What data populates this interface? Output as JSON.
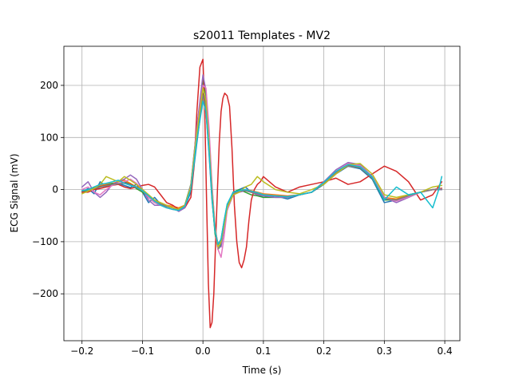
{
  "chart_data": {
    "type": "line",
    "title": "s20011 Templates - MV2",
    "xlabel": "Time (s)",
    "ylabel": "ECG Signal (mV)",
    "xlim": [
      -0.23,
      0.425
    ],
    "ylim": [
      -290,
      275
    ],
    "grid": true,
    "xticks": [
      -0.2,
      -0.1,
      0.0,
      0.1,
      0.2,
      0.3,
      0.4
    ],
    "xtick_labels": [
      "−0.2",
      "−0.1",
      "0.0",
      "0.1",
      "0.2",
      "0.3",
      "0.4"
    ],
    "yticks": [
      -200,
      -100,
      0,
      100,
      200
    ],
    "ytick_labels": [
      "−200",
      "−100",
      "0",
      "100",
      "200"
    ],
    "series": [
      {
        "color": "#1f77b4",
        "x": [
          -0.2,
          -0.19,
          -0.18,
          -0.17,
          -0.16,
          -0.15,
          -0.14,
          -0.13,
          -0.12,
          -0.11,
          -0.1,
          -0.09,
          -0.08,
          -0.07,
          -0.06,
          -0.05,
          -0.04,
          -0.03,
          -0.02,
          -0.01,
          0.0,
          0.005,
          0.01,
          0.015,
          0.02,
          0.025,
          0.03,
          0.035,
          0.04,
          0.05,
          0.06,
          0.07,
          0.08,
          0.09,
          0.1,
          0.12,
          0.14,
          0.16,
          0.18,
          0.2,
          0.22,
          0.24,
          0.26,
          0.28,
          0.3,
          0.32,
          0.34,
          0.36,
          0.38,
          0.395
        ],
        "y": [
          -5,
          2,
          -8,
          15,
          6,
          10,
          12,
          8,
          4,
          10,
          -5,
          -25,
          -15,
          -28,
          -32,
          -35,
          -40,
          -33,
          -5,
          90,
          180,
          150,
          70,
          -20,
          -80,
          -110,
          -95,
          -60,
          -30,
          -5,
          0,
          5,
          -5,
          -10,
          -15,
          -12,
          -18,
          -10,
          -5,
          10,
          30,
          45,
          40,
          20,
          -25,
          -20,
          -10,
          -5,
          0,
          2
        ]
      },
      {
        "color": "#ff7f0e",
        "x": [
          -0.2,
          -0.19,
          -0.18,
          -0.17,
          -0.16,
          -0.15,
          -0.14,
          -0.13,
          -0.12,
          -0.11,
          -0.1,
          -0.09,
          -0.08,
          -0.07,
          -0.06,
          -0.05,
          -0.04,
          -0.03,
          -0.02,
          -0.01,
          0.0,
          0.005,
          0.01,
          0.015,
          0.02,
          0.025,
          0.03,
          0.035,
          0.04,
          0.05,
          0.06,
          0.07,
          0.08,
          0.09,
          0.1,
          0.12,
          0.14,
          0.16,
          0.18,
          0.2,
          0.22,
          0.24,
          0.26,
          0.28,
          0.3,
          0.32,
          0.34,
          0.36,
          0.38,
          0.395
        ],
        "y": [
          -3,
          0,
          5,
          8,
          10,
          12,
          15,
          18,
          12,
          5,
          0,
          -10,
          -20,
          -28,
          -30,
          -32,
          -35,
          -30,
          0,
          100,
          175,
          160,
          80,
          -10,
          -75,
          -105,
          -100,
          -70,
          -35,
          -10,
          -5,
          0,
          -2,
          -5,
          -8,
          -10,
          -12,
          -10,
          -5,
          15,
          35,
          48,
          45,
          25,
          -15,
          -18,
          -10,
          -5,
          0,
          3
        ]
      },
      {
        "color": "#2ca02c",
        "x": [
          -0.2,
          -0.19,
          -0.18,
          -0.17,
          -0.16,
          -0.15,
          -0.14,
          -0.13,
          -0.12,
          -0.11,
          -0.1,
          -0.09,
          -0.08,
          -0.07,
          -0.06,
          -0.05,
          -0.04,
          -0.03,
          -0.02,
          -0.01,
          0.0,
          0.005,
          0.01,
          0.015,
          0.02,
          0.025,
          0.03,
          0.035,
          0.04,
          0.05,
          0.06,
          0.07,
          0.08,
          0.09,
          0.1,
          0.12,
          0.14,
          0.16,
          0.18,
          0.2,
          0.22,
          0.24,
          0.26,
          0.28,
          0.3,
          0.32,
          0.34,
          0.36,
          0.38,
          0.395
        ],
        "y": [
          -5,
          -2,
          0,
          5,
          8,
          12,
          10,
          15,
          10,
          2,
          -5,
          -15,
          -25,
          -30,
          -35,
          -38,
          -40,
          -30,
          10,
          120,
          210,
          180,
          90,
          -15,
          -85,
          -115,
          -105,
          -65,
          -30,
          -5,
          0,
          -5,
          -10,
          -12,
          -15,
          -15,
          -15,
          -10,
          -5,
          12,
          32,
          45,
          42,
          22,
          -20,
          -20,
          -12,
          -5,
          0,
          0
        ]
      },
      {
        "color": "#d62728",
        "x": [
          -0.2,
          -0.19,
          -0.18,
          -0.17,
          -0.16,
          -0.15,
          -0.14,
          -0.13,
          -0.12,
          -0.11,
          -0.1,
          -0.09,
          -0.08,
          -0.07,
          -0.06,
          -0.05,
          -0.04,
          -0.03,
          -0.02,
          -0.015,
          -0.01,
          -0.005,
          0.0,
          0.003,
          0.006,
          0.009,
          0.012,
          0.015,
          0.018,
          0.021,
          0.024,
          0.027,
          0.03,
          0.033,
          0.036,
          0.04,
          0.044,
          0.048,
          0.052,
          0.056,
          0.06,
          0.064,
          0.068,
          0.072,
          0.076,
          0.08,
          0.085,
          0.09,
          0.095,
          0.1,
          0.11,
          0.12,
          0.13,
          0.14,
          0.15,
          0.16,
          0.18,
          0.2,
          0.22,
          0.24,
          0.26,
          0.28,
          0.3,
          0.32,
          0.34,
          0.36,
          0.38,
          0.395
        ],
        "y": [
          -5,
          -5,
          0,
          2,
          5,
          8,
          10,
          5,
          2,
          5,
          8,
          10,
          5,
          -10,
          -25,
          -30,
          -38,
          -35,
          -15,
          40,
          150,
          235,
          250,
          150,
          -20,
          -180,
          -265,
          -255,
          -200,
          -100,
          0,
          90,
          150,
          175,
          185,
          180,
          160,
          80,
          -30,
          -100,
          -140,
          -150,
          -135,
          -110,
          -60,
          -20,
          0,
          10,
          15,
          25,
          15,
          5,
          0,
          -5,
          0,
          5,
          10,
          15,
          22,
          10,
          15,
          30,
          45,
          35,
          15,
          -20,
          -10,
          15
        ]
      },
      {
        "color": "#9467bd",
        "x": [
          -0.2,
          -0.19,
          -0.18,
          -0.17,
          -0.16,
          -0.15,
          -0.14,
          -0.13,
          -0.12,
          -0.11,
          -0.1,
          -0.09,
          -0.08,
          -0.07,
          -0.06,
          -0.05,
          -0.04,
          -0.03,
          -0.02,
          -0.01,
          0.0,
          0.005,
          0.01,
          0.015,
          0.02,
          0.025,
          0.03,
          0.035,
          0.04,
          0.05,
          0.06,
          0.07,
          0.08,
          0.09,
          0.1,
          0.12,
          0.14,
          0.16,
          0.18,
          0.2,
          0.22,
          0.24,
          0.26,
          0.28,
          0.3,
          0.32,
          0.34,
          0.36,
          0.38,
          0.395
        ],
        "y": [
          5,
          15,
          -5,
          -15,
          -5,
          10,
          15,
          20,
          28,
          20,
          0,
          -20,
          -30,
          -30,
          -32,
          -35,
          -42,
          -35,
          5,
          120,
          220,
          190,
          110,
          5,
          -70,
          -110,
          -110,
          -75,
          -40,
          -10,
          -5,
          -2,
          -5,
          -10,
          -12,
          -15,
          -15,
          -10,
          -5,
          15,
          38,
          52,
          48,
          25,
          -15,
          -25,
          -15,
          -5,
          0,
          0
        ]
      },
      {
        "color": "#8c564b",
        "x": [
          -0.2,
          -0.19,
          -0.18,
          -0.17,
          -0.16,
          -0.15,
          -0.14,
          -0.13,
          -0.12,
          -0.11,
          -0.1,
          -0.09,
          -0.08,
          -0.07,
          -0.06,
          -0.05,
          -0.04,
          -0.03,
          -0.02,
          -0.01,
          0.0,
          0.005,
          0.01,
          0.015,
          0.02,
          0.025,
          0.03,
          0.035,
          0.04,
          0.05,
          0.06,
          0.07,
          0.08,
          0.09,
          0.1,
          0.12,
          0.14,
          0.16,
          0.18,
          0.2,
          0.22,
          0.24,
          0.26,
          0.28,
          0.3,
          0.32,
          0.34,
          0.36,
          0.38,
          0.395
        ],
        "y": [
          -2,
          0,
          3,
          6,
          8,
          10,
          12,
          14,
          10,
          5,
          -2,
          -12,
          -22,
          -28,
          -32,
          -35,
          -38,
          -30,
          5,
          105,
          185,
          165,
          85,
          -10,
          -80,
          -108,
          -98,
          -65,
          -32,
          -8,
          -3,
          -2,
          -5,
          -8,
          -10,
          -12,
          -14,
          -10,
          -5,
          12,
          33,
          46,
          43,
          23,
          -18,
          -20,
          -12,
          -5,
          0,
          2
        ]
      },
      {
        "color": "#e377c2",
        "x": [
          -0.2,
          -0.19,
          -0.18,
          -0.17,
          -0.16,
          -0.15,
          -0.14,
          -0.13,
          -0.12,
          -0.11,
          -0.1,
          -0.09,
          -0.08,
          -0.07,
          -0.06,
          -0.05,
          -0.04,
          -0.03,
          -0.02,
          -0.01,
          0.0,
          0.005,
          0.01,
          0.015,
          0.02,
          0.025,
          0.03,
          0.035,
          0.04,
          0.05,
          0.06,
          0.07,
          0.08,
          0.09,
          0.1,
          0.12,
          0.14,
          0.16,
          0.18,
          0.2,
          0.22,
          0.24,
          0.26,
          0.28,
          0.3,
          0.32,
          0.34,
          0.36,
          0.38,
          0.395
        ],
        "y": [
          0,
          5,
          -5,
          -10,
          0,
          8,
          12,
          15,
          20,
          12,
          0,
          -15,
          -25,
          -30,
          -35,
          -38,
          -40,
          -32,
          8,
          115,
          200,
          195,
          120,
          10,
          -75,
          -115,
          -130,
          -90,
          -40,
          -8,
          -2,
          0,
          -3,
          -8,
          -10,
          -12,
          -14,
          -10,
          -5,
          14,
          35,
          50,
          46,
          24,
          -16,
          -22,
          -14,
          -5,
          0,
          2
        ]
      },
      {
        "color": "#7f7f7f",
        "x": [
          -0.2,
          -0.19,
          -0.18,
          -0.17,
          -0.16,
          -0.15,
          -0.14,
          -0.13,
          -0.12,
          -0.11,
          -0.1,
          -0.09,
          -0.08,
          -0.07,
          -0.06,
          -0.05,
          -0.04,
          -0.03,
          -0.02,
          -0.01,
          0.0,
          0.005,
          0.01,
          0.015,
          0.02,
          0.025,
          0.03,
          0.035,
          0.04,
          0.05,
          0.06,
          0.07,
          0.08,
          0.09,
          0.1,
          0.12,
          0.14,
          0.16,
          0.18,
          0.2,
          0.22,
          0.24,
          0.26,
          0.28,
          0.3,
          0.32,
          0.34,
          0.36,
          0.38,
          0.395
        ],
        "y": [
          -3,
          -1,
          2,
          5,
          7,
          10,
          11,
          12,
          9,
          4,
          -3,
          -12,
          -22,
          -28,
          -32,
          -35,
          -38,
          -30,
          3,
          100,
          180,
          160,
          80,
          -12,
          -80,
          -105,
          -97,
          -64,
          -32,
          -8,
          -3,
          -2,
          -5,
          -8,
          -10,
          -12,
          -13,
          -10,
          -5,
          12,
          32,
          45,
          42,
          22,
          -18,
          -20,
          -12,
          -5,
          0,
          1
        ]
      },
      {
        "color": "#bcbd22",
        "x": [
          -0.2,
          -0.19,
          -0.18,
          -0.17,
          -0.16,
          -0.15,
          -0.14,
          -0.13,
          -0.12,
          -0.11,
          -0.1,
          -0.09,
          -0.08,
          -0.07,
          -0.06,
          -0.05,
          -0.04,
          -0.03,
          -0.02,
          -0.01,
          0.0,
          0.005,
          0.01,
          0.015,
          0.02,
          0.025,
          0.03,
          0.035,
          0.04,
          0.05,
          0.06,
          0.07,
          0.08,
          0.09,
          0.1,
          0.12,
          0.14,
          0.16,
          0.18,
          0.2,
          0.22,
          0.24,
          0.26,
          0.28,
          0.3,
          0.32,
          0.34,
          0.36,
          0.38,
          0.395
        ],
        "y": [
          -8,
          -3,
          2,
          10,
          25,
          20,
          15,
          25,
          18,
          10,
          0,
          -10,
          -20,
          -25,
          -30,
          -35,
          -38,
          -30,
          5,
          110,
          195,
          170,
          90,
          -5,
          -75,
          -110,
          -100,
          -70,
          -35,
          -10,
          -5,
          5,
          10,
          25,
          15,
          0,
          -5,
          -8,
          0,
          10,
          30,
          48,
          50,
          30,
          -10,
          -15,
          -10,
          -5,
          5,
          8
        ]
      },
      {
        "color": "#17becf",
        "x": [
          -0.2,
          -0.19,
          -0.18,
          -0.17,
          -0.16,
          -0.15,
          -0.14,
          -0.13,
          -0.12,
          -0.11,
          -0.1,
          -0.09,
          -0.08,
          -0.07,
          -0.06,
          -0.05,
          -0.04,
          -0.03,
          -0.02,
          -0.01,
          0.0,
          0.005,
          0.01,
          0.015,
          0.02,
          0.025,
          0.03,
          0.035,
          0.04,
          0.05,
          0.06,
          0.07,
          0.08,
          0.09,
          0.1,
          0.12,
          0.14,
          0.16,
          0.18,
          0.2,
          0.22,
          0.24,
          0.26,
          0.28,
          0.3,
          0.32,
          0.34,
          0.36,
          0.38,
          0.39,
          0.395
        ],
        "y": [
          -2,
          0,
          5,
          10,
          12,
          15,
          18,
          12,
          8,
          5,
          -2,
          -12,
          -22,
          -30,
          -35,
          -38,
          -40,
          -32,
          0,
          95,
          170,
          150,
          75,
          -15,
          -80,
          -105,
          -95,
          -60,
          -28,
          -5,
          -2,
          0,
          -3,
          -6,
          -10,
          -12,
          -14,
          -10,
          -5,
          14,
          35,
          48,
          44,
          24,
          -20,
          5,
          -10,
          -5,
          -35,
          0,
          25
        ]
      }
    ]
  }
}
